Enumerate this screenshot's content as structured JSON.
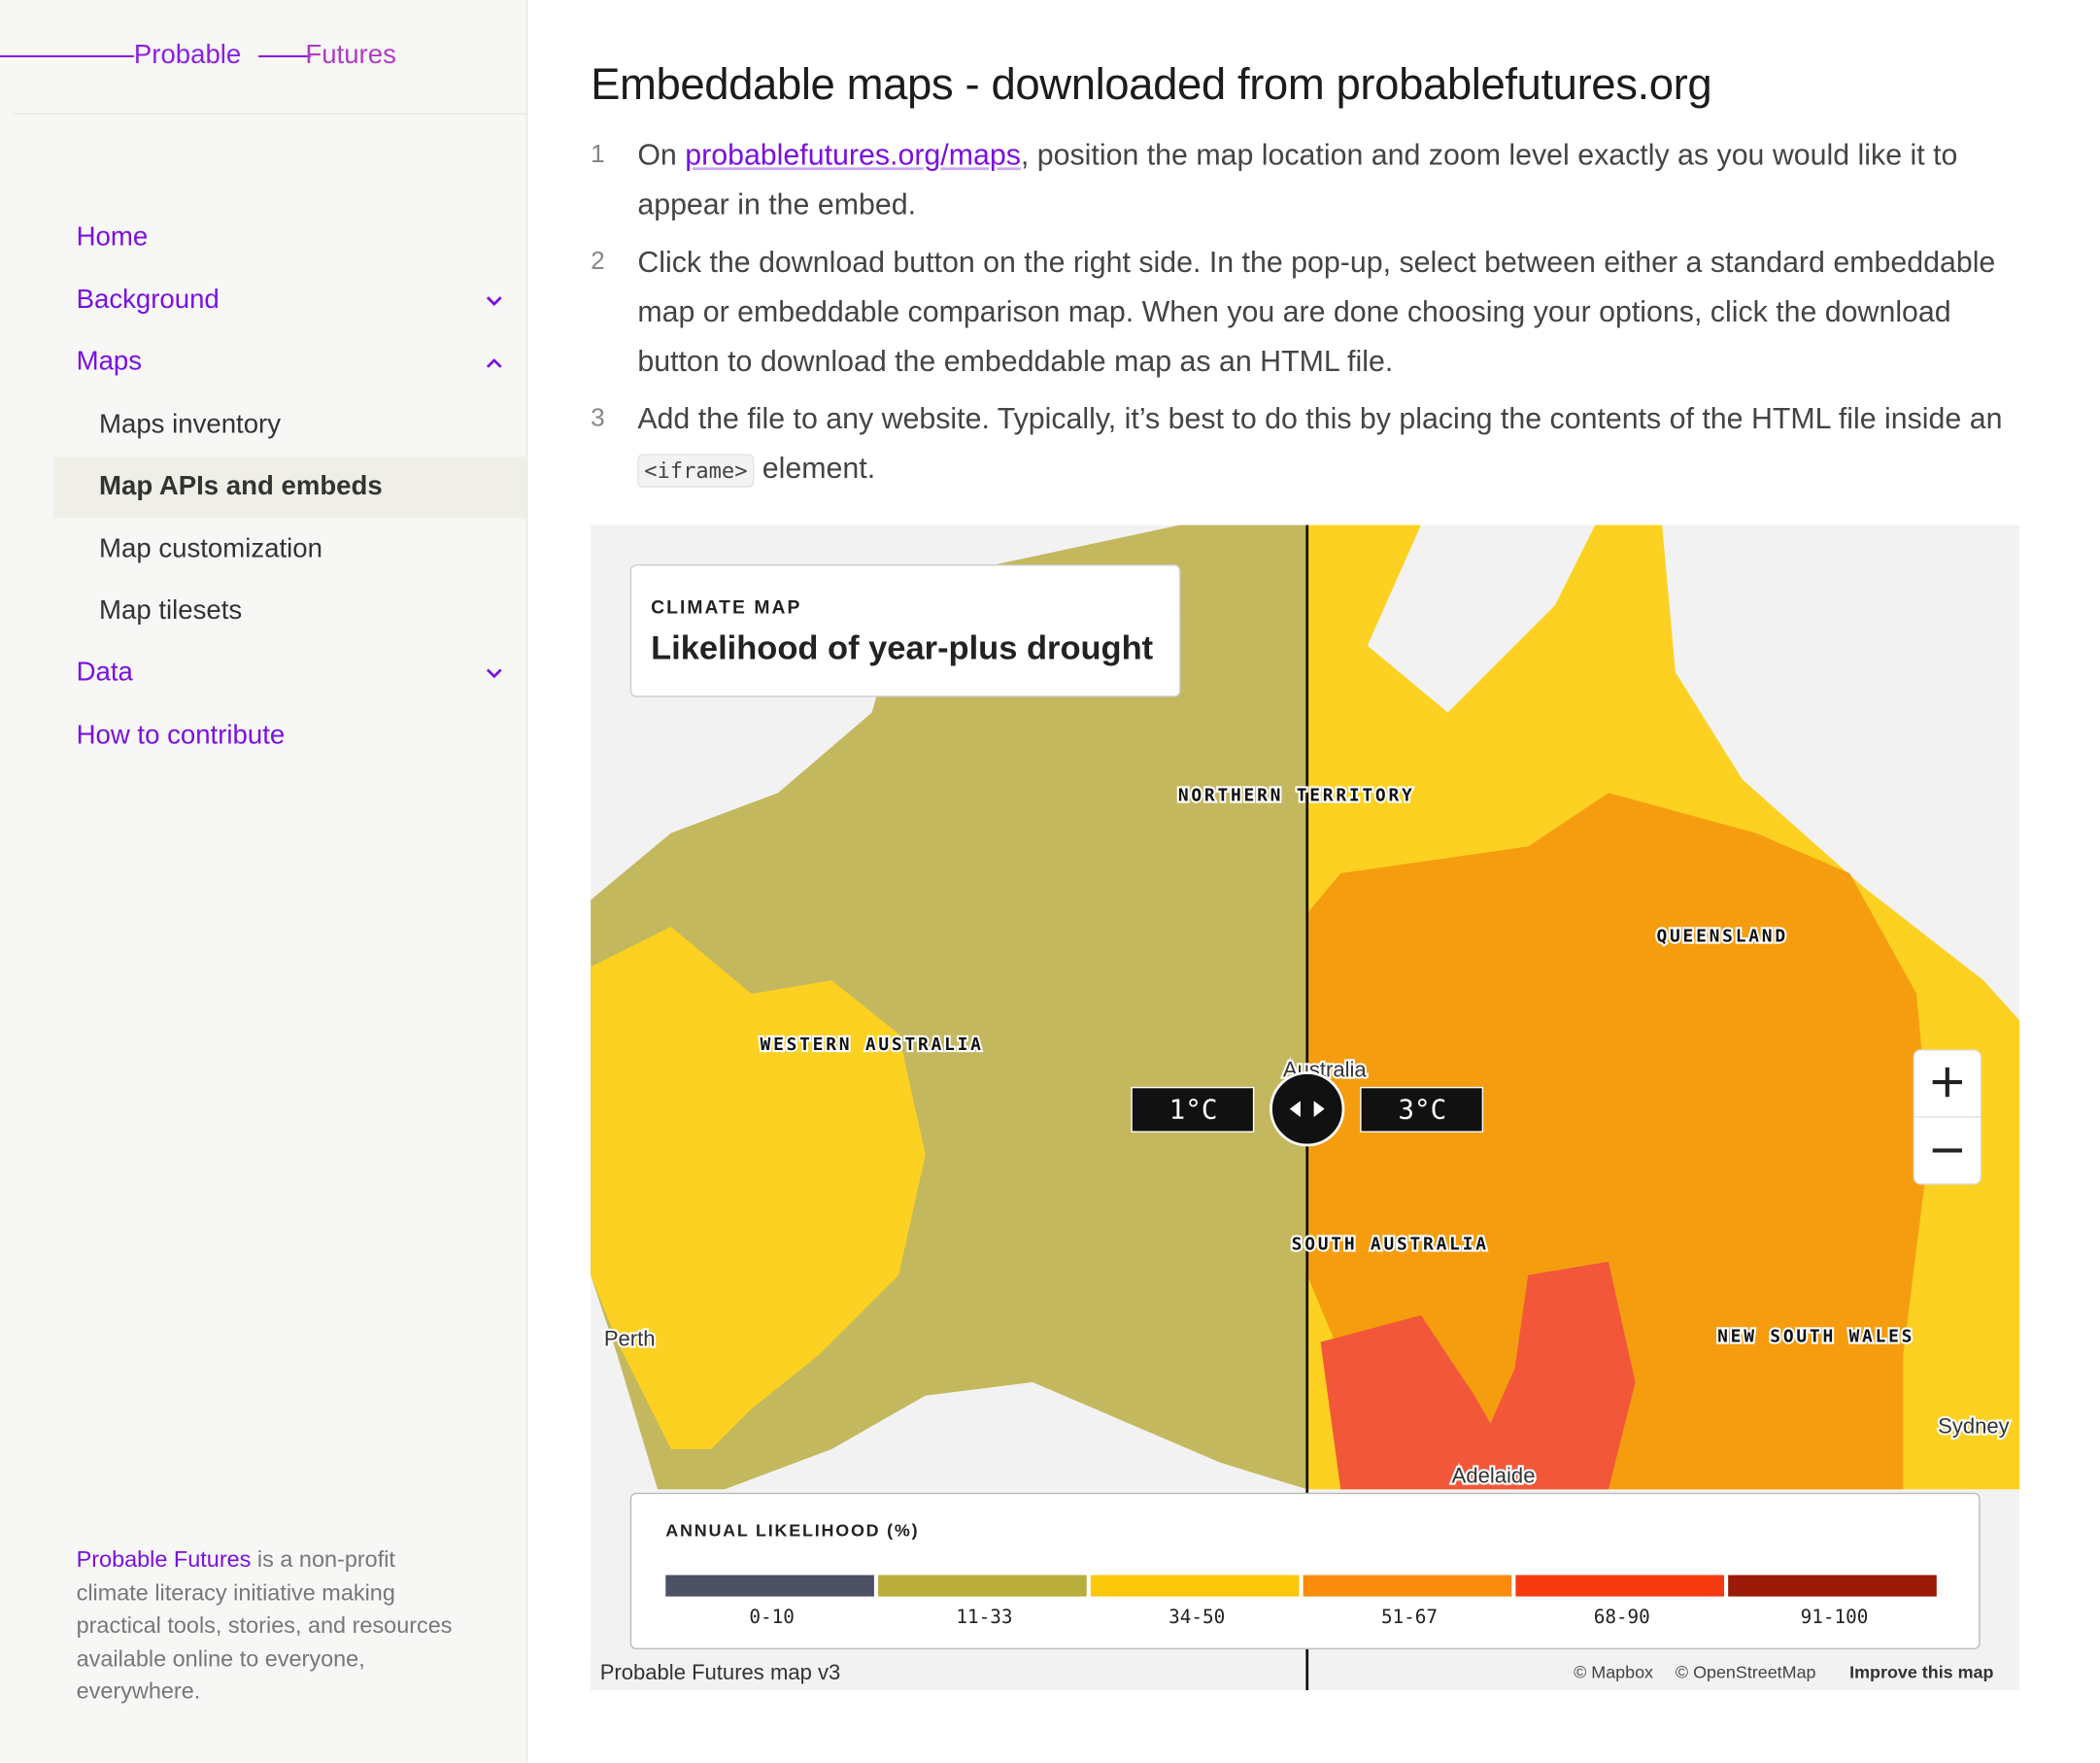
{
  "sidebar": {
    "logo": [
      "Probable",
      "Futures"
    ],
    "nav": [
      {
        "label": "Home"
      },
      {
        "label": "Background"
      },
      {
        "label": "Maps"
      },
      {
        "label": "Maps inventory"
      },
      {
        "label": "Map APIs and embeds"
      },
      {
        "label": "Map customization"
      },
      {
        "label": "Map tilesets"
      },
      {
        "label": "Data"
      },
      {
        "label": "How to contribute"
      }
    ],
    "footer": {
      "link": "Probable Futures",
      "text": " is a non-profit climate literacy initiative making practical tools, stories, and resources available online to everyone, everywhere."
    }
  },
  "content": {
    "title": "Embeddable maps - downloaded from probablefutures.org",
    "steps": [
      {
        "number": "1",
        "parts": [
          "On ",
          "probablefutures.org/maps",
          ", position the map location and zoom level exactly as you would like it to appear in the embed."
        ]
      },
      {
        "number": "2",
        "parts": [
          "Click the download button on the right side. In the pop-up, select between either a standard embeddable map or embeddable comparison map. When you are done choosing your options, click the download button to download the embeddable map as an HTML file."
        ]
      },
      {
        "number": "3",
        "parts": [
          "Add the file to any website. Typically, it’s best to do this by placing the contents of the HTML file inside an ",
          "<iframe>",
          " element."
        ]
      }
    ]
  },
  "map": {
    "eyebrow": "CLIMATE MAP",
    "title": "Likelihood of year-plus drought",
    "regions": [
      "NORTHERN TERRITORY",
      "QUEENSLAND",
      "WESTERN AUSTRALIA",
      "SOUTH AUSTRALIA",
      "NEW SOUTH WALES"
    ],
    "places": [
      "Perth",
      "Adelaide",
      "Sydney",
      "Australia"
    ],
    "left_label": "1°C",
    "right_label": "3°C",
    "legend": {
      "title": "ANNUAL LIKELIHOOD (%)",
      "bins": [
        "0-10",
        "11-33",
        "34-50",
        "51-67",
        "68-90",
        "91-100"
      ]
    },
    "attribution": [
      "Probable Futures map v3",
      "© Mapbox",
      "© OpenStreetMap",
      "Improve this map"
    ]
  }
}
